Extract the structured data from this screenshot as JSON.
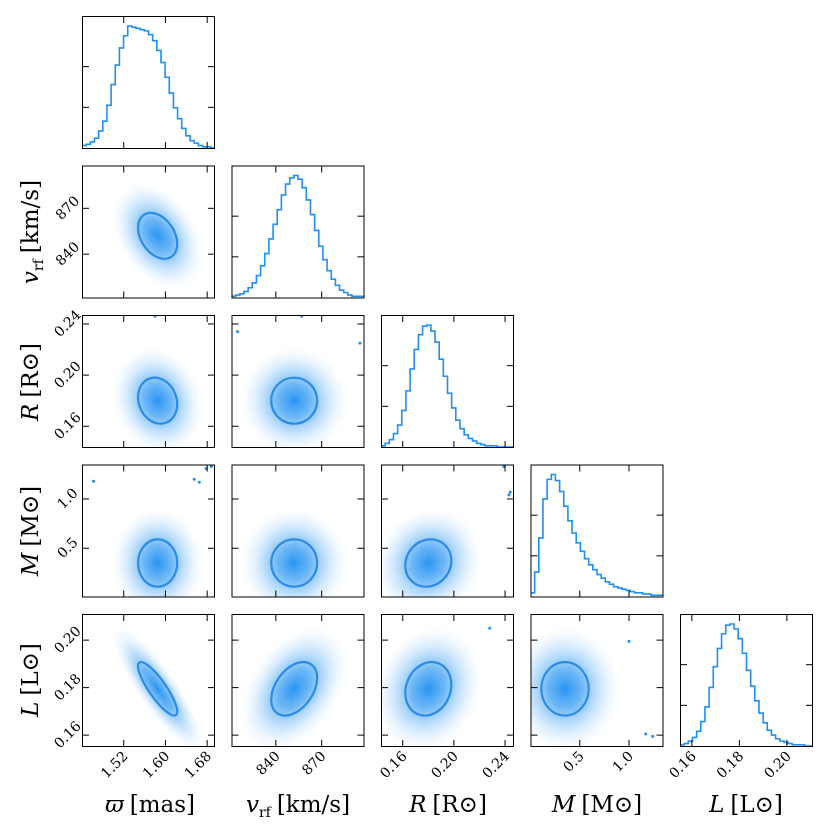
{
  "chart_data": {
    "type": "corner",
    "color": "#1f8ff2",
    "contour_color": "#2a8ce8",
    "params": [
      {
        "id": "plx",
        "sym": "ϖ",
        "unit": "[mas]",
        "label": "ϖ [mas]",
        "sub": "",
        "range": [
          1.44,
          1.695
        ],
        "ticks": [
          1.52,
          1.6,
          1.68
        ],
        "tick_labels": [
          "1.52",
          "1.60",
          "1.68"
        ],
        "mean": 1.585,
        "sd": 0.025
      },
      {
        "id": "vrf",
        "sym": "v",
        "unit": "[km/s]",
        "label": "v_rf [km/s]",
        "sub": "rf",
        "range": [
          811,
          898
        ],
        "ticks": [
          840,
          870
        ],
        "tick_labels": [
          "840",
          "870"
        ],
        "mean": 852,
        "sd": 10
      },
      {
        "id": "R",
        "sym": "R",
        "unit": "[R⊙]",
        "label": "R [R⊙]",
        "sub": "",
        "range": [
          0.143,
          0.247
        ],
        "ticks": [
          0.16,
          0.2,
          0.24
        ],
        "tick_labels": [
          "0.16",
          "0.20",
          "0.24"
        ],
        "mean": 0.18,
        "sd": 0.012
      },
      {
        "id": "M",
        "sym": "M",
        "unit": "[M⊙]",
        "label": "M [M⊙]",
        "sub": "",
        "range": [
          0.0,
          1.35
        ],
        "ticks": [
          0.5,
          1.0
        ],
        "tick_labels": [
          "0.5",
          "1.0"
        ],
        "mean": 0.35,
        "sd": 0.16
      },
      {
        "id": "L",
        "sym": "L",
        "unit": "[L⊙]",
        "label": "L [L⊙]",
        "sub": "",
        "range": [
          0.155,
          0.211
        ],
        "ticks": [
          0.16,
          0.18,
          0.2
        ],
        "tick_labels": [
          "0.16",
          "0.18",
          "0.20"
        ],
        "mean": 0.1795,
        "sd": 0.0075
      }
    ],
    "correlations": {
      "vrf|plx": -0.35,
      "R|plx": -0.15,
      "R|vrf": 0.0,
      "M|plx": 0.0,
      "M|vrf": 0.0,
      "M|R": 0.1,
      "L|plx": -0.85,
      "L|vrf": 0.4,
      "L|R": 0.15,
      "L|M": 0.0
    },
    "histograms": {
      "plx": [
        2,
        3,
        5,
        8,
        14,
        22,
        35,
        52,
        68,
        82,
        92,
        100,
        99,
        98,
        97,
        96,
        93,
        88,
        80,
        70,
        58,
        45,
        33,
        24,
        16,
        10,
        6,
        4,
        2,
        1,
        1,
        0
      ],
      "vrf": [
        1,
        2,
        3,
        5,
        8,
        12,
        18,
        26,
        36,
        48,
        60,
        72,
        84,
        93,
        98,
        100,
        97,
        90,
        80,
        68,
        55,
        42,
        31,
        22,
        15,
        10,
        6,
        4,
        2,
        1,
        1,
        1
      ],
      "R": [
        1,
        3,
        6,
        11,
        18,
        30,
        46,
        64,
        80,
        92,
        99,
        100,
        95,
        86,
        72,
        58,
        44,
        32,
        22,
        15,
        10,
        7,
        5,
        3,
        2,
        1,
        1,
        1,
        0,
        0,
        0,
        0
      ],
      "M": [
        3,
        20,
        48,
        80,
        96,
        100,
        95,
        86,
        74,
        62,
        52,
        44,
        37,
        31,
        26,
        22,
        18,
        15,
        12,
        10,
        8,
        7,
        6,
        5,
        4,
        3,
        3,
        2,
        2,
        1,
        1,
        1
      ],
      "L": [
        1,
        2,
        4,
        7,
        12,
        20,
        32,
        48,
        65,
        80,
        92,
        99,
        100,
        96,
        88,
        76,
        62,
        49,
        37,
        27,
        19,
        13,
        9,
        6,
        4,
        3,
        2,
        1,
        1,
        1,
        0,
        0
      ]
    },
    "outliers": {
      "R|plx": [
        [
          1.58,
          0.246
        ]
      ],
      "R|vrf": [
        [
          815,
          0.234
        ],
        [
          857,
          0.246
        ],
        [
          895,
          0.225
        ]
      ],
      "M|plx": [
        [
          1.462,
          1.18
        ],
        [
          1.655,
          1.2
        ],
        [
          1.665,
          1.17
        ],
        [
          1.678,
          1.31
        ],
        [
          1.688,
          1.33
        ]
      ],
      "M|R": [
        [
          0.239,
          1.33
        ],
        [
          0.244,
          1.07
        ],
        [
          0.243,
          1.04
        ]
      ],
      "L|R": [
        [
          0.228,
          0.205
        ]
      ],
      "L|M": [
        [
          1.0,
          0.1995
        ],
        [
          1.17,
          0.1605
        ],
        [
          1.24,
          0.1595
        ]
      ]
    }
  }
}
